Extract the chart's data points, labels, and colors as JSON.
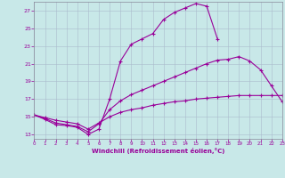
{
  "xlabel": "Windchill (Refroidissement éolien,°C)",
  "bg_color": "#c8e8e8",
  "grid_color": "#aabbcc",
  "line_color": "#990099",
  "xlim": [
    0,
    23
  ],
  "ylim": [
    12.5,
    28.0
  ],
  "yticks": [
    13,
    15,
    17,
    19,
    21,
    23,
    25,
    27
  ],
  "xticks": [
    0,
    1,
    2,
    3,
    4,
    5,
    6,
    7,
    8,
    9,
    10,
    11,
    12,
    13,
    14,
    15,
    16,
    17,
    18,
    19,
    20,
    21,
    22,
    23
  ],
  "series1_x": [
    0,
    1,
    2,
    3,
    4,
    5,
    6,
    7,
    8,
    9,
    10,
    11,
    12,
    13,
    14,
    15,
    16,
    17
  ],
  "series1_y": [
    15.2,
    14.7,
    14.1,
    14.0,
    13.8,
    13.0,
    13.6,
    17.0,
    21.3,
    23.2,
    23.8,
    24.4,
    26.0,
    26.8,
    27.3,
    27.8,
    27.5,
    23.8
  ],
  "series2_x": [
    0,
    1,
    2,
    3,
    4,
    5,
    6,
    7,
    8,
    9,
    10,
    11,
    12,
    13,
    14,
    15,
    16,
    17,
    18,
    19,
    20,
    21,
    22,
    23
  ],
  "series2_y": [
    15.2,
    14.8,
    14.3,
    14.1,
    13.9,
    13.3,
    14.2,
    15.8,
    16.8,
    17.5,
    18.0,
    18.5,
    19.0,
    19.5,
    20.0,
    20.5,
    21.0,
    21.4,
    21.5,
    21.8,
    21.3,
    20.3,
    18.5,
    16.7
  ],
  "series3_x": [
    0,
    1,
    2,
    3,
    4,
    5,
    6,
    7,
    8,
    9,
    10,
    11,
    12,
    13,
    14,
    15,
    16,
    17,
    18,
    19,
    20,
    21,
    22,
    23
  ],
  "series3_y": [
    15.2,
    14.9,
    14.6,
    14.4,
    14.2,
    13.6,
    14.3,
    15.0,
    15.5,
    15.8,
    16.0,
    16.3,
    16.5,
    16.7,
    16.8,
    17.0,
    17.1,
    17.2,
    17.3,
    17.4,
    17.4,
    17.4,
    17.4,
    17.4
  ]
}
